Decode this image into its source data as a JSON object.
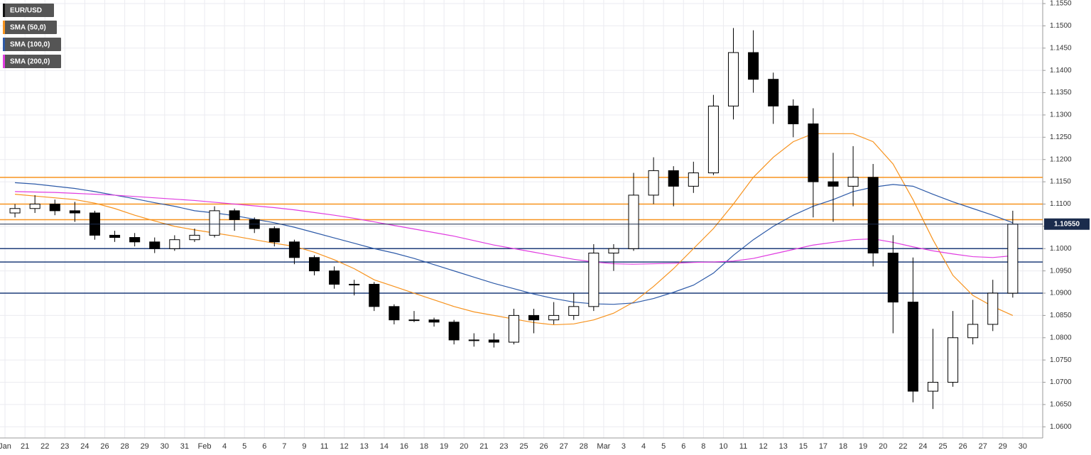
{
  "chart_data": {
    "type": "candlestick",
    "xlim": [
      -0.25,
      52
    ],
    "ylim": [
      1.0575,
      1.1558
    ],
    "grid": true,
    "xticks": [
      {
        "value": 0,
        "label": "Jan"
      },
      {
        "value": 1,
        "label": "21"
      },
      {
        "value": 2,
        "label": "22"
      },
      {
        "value": 3,
        "label": "23"
      },
      {
        "value": 4,
        "label": "24"
      },
      {
        "value": 5,
        "label": "26"
      },
      {
        "value": 6,
        "label": "28"
      },
      {
        "value": 7,
        "label": "29"
      },
      {
        "value": 8,
        "label": "30"
      },
      {
        "value": 9,
        "label": "31"
      },
      {
        "value": 10,
        "label": "Feb"
      },
      {
        "value": 11,
        "label": "4"
      },
      {
        "value": 12,
        "label": "5"
      },
      {
        "value": 13,
        "label": "6"
      },
      {
        "value": 14,
        "label": "7"
      },
      {
        "value": 15,
        "label": "9"
      },
      {
        "value": 16,
        "label": "11"
      },
      {
        "value": 17,
        "label": "12"
      },
      {
        "value": 18,
        "label": "13"
      },
      {
        "value": 19,
        "label": "14"
      },
      {
        "value": 20,
        "label": "16"
      },
      {
        "value": 21,
        "label": "18"
      },
      {
        "value": 22,
        "label": "19"
      },
      {
        "value": 23,
        "label": "20"
      },
      {
        "value": 24,
        "label": "21"
      },
      {
        "value": 25,
        "label": "23"
      },
      {
        "value": 26,
        "label": "25"
      },
      {
        "value": 27,
        "label": "26"
      },
      {
        "value": 28,
        "label": "27"
      },
      {
        "value": 29,
        "label": "28"
      },
      {
        "value": 30,
        "label": "Mar"
      },
      {
        "value": 31,
        "label": "3"
      },
      {
        "value": 32,
        "label": "4"
      },
      {
        "value": 33,
        "label": "5"
      },
      {
        "value": 34,
        "label": "6"
      },
      {
        "value": 35,
        "label": "8"
      },
      {
        "value": 36,
        "label": "10"
      },
      {
        "value": 37,
        "label": "11"
      },
      {
        "value": 38,
        "label": "12"
      },
      {
        "value": 39,
        "label": "13"
      },
      {
        "value": 40,
        "label": "15"
      },
      {
        "value": 41,
        "label": "17"
      },
      {
        "value": 42,
        "label": "18"
      },
      {
        "value": 43,
        "label": "19"
      },
      {
        "value": 44,
        "label": "20"
      },
      {
        "value": 45,
        "label": "22"
      },
      {
        "value": 46,
        "label": "24"
      },
      {
        "value": 47,
        "label": "25"
      },
      {
        "value": 48,
        "label": "26"
      },
      {
        "value": 49,
        "label": "27"
      },
      {
        "value": 50,
        "label": "29"
      },
      {
        "value": 51,
        "label": "30"
      }
    ],
    "yticks": [
      {
        "value": 1.155,
        "label": "1.1550"
      },
      {
        "value": 1.15,
        "label": "1.1500"
      },
      {
        "value": 1.145,
        "label": "1.1450"
      },
      {
        "value": 1.14,
        "label": "1.1400"
      },
      {
        "value": 1.135,
        "label": "1.1350"
      },
      {
        "value": 1.13,
        "label": "1.1300"
      },
      {
        "value": 1.125,
        "label": "1.1250"
      },
      {
        "value": 1.12,
        "label": "1.1200"
      },
      {
        "value": 1.115,
        "label": "1.1150"
      },
      {
        "value": 1.11,
        "label": "1.1100"
      },
      {
        "value": 1.105,
        "label": "1.1050"
      },
      {
        "value": 1.1,
        "label": "1.1000"
      },
      {
        "value": 1.095,
        "label": "1.0950"
      },
      {
        "value": 1.09,
        "label": "1.0900"
      },
      {
        "value": 1.085,
        "label": "1.0850"
      },
      {
        "value": 1.08,
        "label": "1.0800"
      },
      {
        "value": 1.075,
        "label": "1.0750"
      },
      {
        "value": 1.07,
        "label": "1.0700"
      },
      {
        "value": 1.065,
        "label": "1.0650"
      },
      {
        "value": 1.06,
        "label": "1.0600"
      }
    ],
    "candles": {
      "name": "EUR/USD",
      "color": "#000000",
      "up_color": "#ffffff",
      "down_color": "#000000",
      "x": [
        0.5,
        1.5,
        2.5,
        3.5,
        4.5,
        5.5,
        6.5,
        7.5,
        8.5,
        9.5,
        10.5,
        11.5,
        12.5,
        13.5,
        14.5,
        15.5,
        16.5,
        17.5,
        18.5,
        19.5,
        20.5,
        21.5,
        22.5,
        23.5,
        24.5,
        25.5,
        26.5,
        27.5,
        28.5,
        29.5,
        30.5,
        31.5,
        32.5,
        33.5,
        34.5,
        35.5,
        36.5,
        37.5,
        38.5,
        39.5,
        40.5,
        41.5,
        42.5,
        43.5,
        44.5,
        45.5,
        46.5,
        47.5,
        48.5,
        49.5,
        50.5
      ],
      "open": [
        1.108,
        1.109,
        1.11,
        1.1085,
        1.108,
        1.103,
        1.1025,
        1.1015,
        1.1,
        1.102,
        1.103,
        1.1085,
        1.1065,
        1.1045,
        1.1015,
        1.098,
        1.095,
        1.092,
        1.092,
        1.087,
        1.084,
        1.084,
        1.0835,
        1.0795,
        1.0795,
        1.079,
        1.085,
        1.084,
        1.085,
        1.087,
        1.099,
        1.1,
        1.112,
        1.1175,
        1.114,
        1.117,
        1.132,
        1.144,
        1.138,
        1.132,
        1.128,
        1.115,
        1.114,
        1.116,
        1.099,
        1.088,
        1.068,
        1.07,
        1.08,
        1.083,
        1.09
      ],
      "high": [
        1.11,
        1.112,
        1.111,
        1.1105,
        1.1085,
        1.104,
        1.1035,
        1.1025,
        1.103,
        1.1045,
        1.1095,
        1.109,
        1.107,
        1.105,
        1.102,
        1.0985,
        1.096,
        1.093,
        1.0925,
        1.0875,
        1.086,
        1.0845,
        1.084,
        1.081,
        1.081,
        1.0865,
        1.0865,
        1.088,
        1.09,
        1.101,
        1.101,
        1.117,
        1.1205,
        1.1185,
        1.1195,
        1.1345,
        1.1495,
        1.149,
        1.1395,
        1.1335,
        1.1315,
        1.1215,
        1.123,
        1.119,
        1.103,
        1.098,
        1.082,
        1.086,
        1.0885,
        1.093,
        1.1085
      ],
      "low": [
        1.107,
        1.108,
        1.1075,
        1.106,
        1.102,
        1.1015,
        1.1005,
        1.099,
        1.0995,
        1.1015,
        1.1025,
        1.104,
        1.1035,
        1.1005,
        1.0965,
        1.094,
        1.091,
        1.0895,
        1.086,
        1.083,
        1.0835,
        1.0825,
        1.0785,
        1.078,
        1.0778,
        1.0785,
        1.081,
        1.083,
        1.084,
        1.086,
        1.095,
        1.0995,
        1.11,
        1.1095,
        1.1125,
        1.1165,
        1.129,
        1.135,
        1.128,
        1.125,
        1.107,
        1.106,
        1.1095,
        1.096,
        1.081,
        1.0655,
        1.064,
        1.069,
        1.0785,
        1.0815,
        1.089
      ],
      "close": [
        1.109,
        1.11,
        1.1085,
        1.108,
        1.103,
        1.1025,
        1.1015,
        1.1,
        1.102,
        1.103,
        1.1085,
        1.1065,
        1.1045,
        1.1015,
        1.098,
        1.095,
        1.092,
        1.092,
        1.087,
        1.084,
        1.084,
        1.0835,
        1.0795,
        1.0795,
        1.079,
        1.085,
        1.084,
        1.085,
        1.087,
        1.099,
        1.1,
        1.112,
        1.1175,
        1.114,
        1.117,
        1.132,
        1.144,
        1.138,
        1.132,
        1.128,
        1.115,
        1.114,
        1.116,
        1.099,
        1.088,
        1.068,
        1.07,
        1.08,
        1.083,
        1.09,
        1.1055
      ]
    },
    "series": [
      {
        "name": "SMA (50,0)",
        "color": "#f7931e",
        "values": [
          1.1122,
          1.1118,
          1.1114,
          1.111,
          1.1102,
          1.109,
          1.1075,
          1.1062,
          1.105,
          1.1042,
          1.1035,
          1.1028,
          1.102,
          1.1012,
          1.1005,
          1.0992,
          1.0975,
          1.0955,
          1.093,
          1.0915,
          1.09,
          1.0885,
          1.087,
          1.0858,
          1.085,
          1.0842,
          1.0834,
          1.0829,
          1.0831,
          1.084,
          1.0855,
          1.088,
          1.0915,
          1.0955,
          1.1,
          1.1045,
          1.11,
          1.116,
          1.1205,
          1.124,
          1.1258,
          1.1258,
          1.1258,
          1.124,
          1.119,
          1.111,
          1.102,
          1.094,
          1.0895,
          1.087,
          1.085
        ]
      },
      {
        "name": "SMA (100,0)",
        "color": "#2d5aa8",
        "values": [
          1.1148,
          1.1145,
          1.114,
          1.1135,
          1.1128,
          1.112,
          1.1112,
          1.1103,
          1.1095,
          1.1085,
          1.108,
          1.1074,
          1.1066,
          1.1058,
          1.1048,
          1.1036,
          1.1024,
          1.1012,
          1.1,
          1.099,
          1.0978,
          1.0964,
          1.095,
          1.0936,
          1.0922,
          1.091,
          1.0898,
          1.0888,
          1.088,
          1.0876,
          1.0875,
          1.0878,
          1.0888,
          1.0902,
          1.0918,
          1.0945,
          1.0985,
          1.102,
          1.105,
          1.1075,
          1.1095,
          1.111,
          1.1128,
          1.1138,
          1.1144,
          1.114,
          1.1122,
          1.1105,
          1.109,
          1.1075,
          1.1058
        ]
      },
      {
        "name": "SMA (200,0)",
        "color": "#e03ce0",
        "values": [
          1.1128,
          1.1127,
          1.1126,
          1.1124,
          1.1122,
          1.112,
          1.1117,
          1.1114,
          1.1111,
          1.1108,
          1.1104,
          1.11,
          1.1096,
          1.1092,
          1.1087,
          1.1081,
          1.1075,
          1.1068,
          1.106,
          1.1052,
          1.1044,
          1.1036,
          1.1028,
          1.1018,
          1.1008,
          1.1,
          1.0992,
          1.0984,
          1.0976,
          1.097,
          1.0966,
          1.0965,
          1.0966,
          1.0967,
          1.0969,
          1.097,
          1.0972,
          1.0978,
          1.0988,
          1.0998,
          1.1008,
          1.1014,
          1.102,
          1.1022,
          1.1014,
          1.1004,
          1.0995,
          1.0988,
          1.0982,
          1.098,
          1.0984
        ]
      }
    ],
    "levels": [
      {
        "value": 1.116,
        "color": "#f7931e"
      },
      {
        "value": 1.11,
        "color": "#f7931e"
      },
      {
        "value": 1.1065,
        "color": "#f7931e"
      },
      {
        "value": 1.1,
        "color": "#1f3d7a"
      },
      {
        "value": 1.097,
        "color": "#1f3d7a"
      },
      {
        "value": 1.09,
        "color": "#1f3d7a"
      }
    ],
    "current_price": {
      "value": 1.1055,
      "label": "1.10550",
      "color": "#1a2b4c"
    }
  }
}
